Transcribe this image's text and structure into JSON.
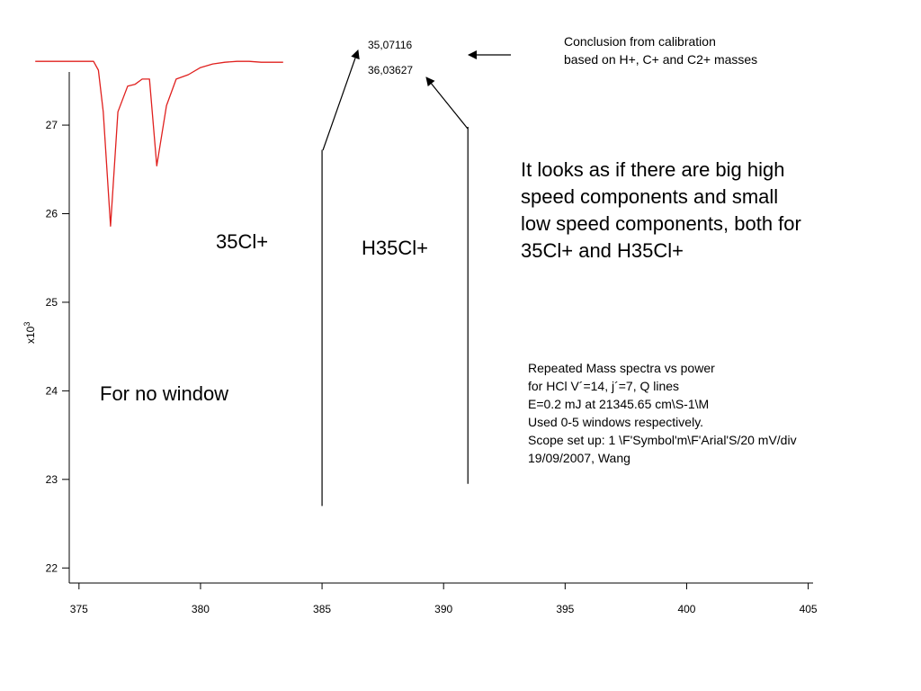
{
  "colors": {
    "trace": "#e0201e",
    "axis": "#000000",
    "arrow": "#000000"
  },
  "chart_data": {
    "type": "line",
    "x_ticks": [
      375,
      380,
      385,
      390,
      395,
      400,
      405
    ],
    "y_ticks": [
      22,
      23,
      24,
      25,
      26,
      27
    ],
    "y_multiplier_label": "x10",
    "y_multiplier_exp": "3",
    "xlim": [
      374.6,
      405.2
    ],
    "ylim": [
      21.83,
      27.6
    ],
    "series": [
      {
        "color": "#e0201e",
        "x": [
          373.2,
          374.0,
          374.8,
          375.6,
          375.8,
          376.0,
          376.3,
          376.6,
          377.0,
          377.3,
          377.6,
          377.9,
          378.2,
          378.6,
          379.0,
          379.5,
          380.0,
          380.5,
          381.0,
          381.5,
          382.0,
          382.5,
          383.0,
          383.4
        ],
        "y": [
          27.72,
          27.72,
          27.72,
          27.72,
          27.62,
          27.15,
          25.86,
          27.15,
          27.44,
          27.46,
          27.52,
          27.52,
          26.54,
          27.22,
          27.52,
          27.57,
          27.65,
          27.69,
          27.71,
          27.72,
          27.72,
          27.71,
          27.71,
          27.71
        ]
      }
    ],
    "markers": [
      {
        "x": 385,
        "y_from": 22.7,
        "y_to": 26.72
      },
      {
        "x": 391,
        "y_from": 22.95,
        "y_to": 26.98
      }
    ]
  },
  "annotations": {
    "mass_1": "35,07116",
    "mass_2": "36,03627",
    "calibration_lines": [
      "Conclusion from calibration",
      "based on H+, C+ and C2+ masses"
    ],
    "label_cl": "35Cl+",
    "label_hcl": "H35Cl+",
    "findings_lines": [
      "It looks as if there are big high",
      "speed components and small",
      "low speed components, both for",
      "35Cl+ and H35Cl+"
    ],
    "no_window": "For no window",
    "notes_lines": [
      "Repeated Mass spectra vs power",
      "for HCl V´=14, j´=7, Q lines",
      "E=0.2 mJ at 21345.65 cm\\S-1\\M",
      "Used 0-5 windows respectively.",
      "Scope set up: 1 \\F'Symbol'm\\F'Arial'S/20 mV/div",
      "19/09/2007, Wang"
    ]
  }
}
